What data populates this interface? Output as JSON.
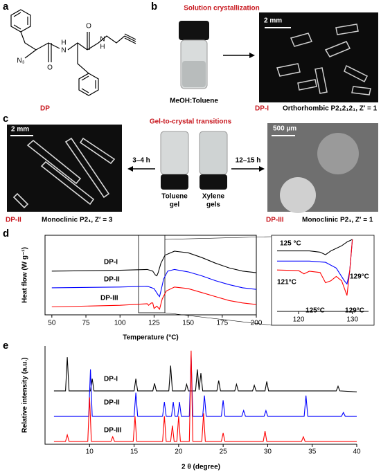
{
  "panels": {
    "a": {
      "label": "a",
      "atoms": [
        "N₃",
        "H",
        "N",
        "O",
        "O",
        "N",
        "H"
      ],
      "compound": "DP"
    },
    "b": {
      "label": "b",
      "title": "Solution crystallization",
      "solvent": "MeOH:Toluene",
      "scale": "2 mm",
      "form": "DP-I",
      "description": "Orthorhombic P2₁2₁2₁, Z′ = 1"
    },
    "c": {
      "label": "c",
      "title": "Gel-to-crystal transitions",
      "scale_left": "2 mm",
      "time_left": "3–4 h",
      "time_right": "12–15 h",
      "scale_right": "500 µm",
      "vials": [
        [
          "Toluene",
          "gel"
        ],
        [
          "Xylene",
          "gels"
        ]
      ],
      "forms": [
        {
          "name": "DP-II",
          "description": "Monoclinic P2₁, Z′ = 3"
        },
        {
          "name": "DP-III",
          "description": "Monoclinic P2₁, Z′ = 1"
        }
      ]
    },
    "d": {
      "label": "d"
    },
    "e": {
      "label": "e"
    }
  },
  "chart_data": [
    {
      "type": "line",
      "xlabel": "Temperature (°C)",
      "ylabel": "Heat flow (W g⁻¹)",
      "xlim": [
        45,
        200
      ],
      "xticks": [
        50,
        75,
        100,
        125,
        150,
        175,
        200
      ],
      "ylim": [
        0,
        10
      ],
      "series": [
        {
          "name": "DP-I",
          "color": "#000000",
          "x": [
            50,
            100,
            120,
            124,
            126,
            127,
            128,
            130,
            133,
            140,
            150,
            160,
            170,
            180,
            190,
            200
          ],
          "values": [
            5.5,
            5.6,
            5.7,
            5.5,
            5.0,
            4.9,
            5.3,
            6.5,
            7.5,
            8.0,
            7.8,
            7.2,
            6.5,
            5.9,
            5.5,
            5.3
          ]
        },
        {
          "name": "DP-II",
          "color": "#0000ff",
          "x": [
            50,
            100,
            120,
            125,
            128,
            129,
            130,
            132,
            135,
            140,
            150,
            160,
            170,
            180,
            190,
            200
          ],
          "values": [
            3.4,
            3.5,
            3.6,
            3.3,
            2.5,
            2.3,
            3.0,
            4.5,
            5.5,
            5.7,
            5.4,
            4.9,
            4.3,
            3.8,
            3.4,
            3.2
          ]
        },
        {
          "name": "DP-III",
          "color": "#ff0000",
          "x": [
            50,
            100,
            120,
            121,
            123,
            124,
            125,
            127,
            129,
            131,
            134,
            140,
            150,
            160,
            170,
            180,
            190,
            200
          ],
          "values": [
            1.0,
            1.2,
            1.4,
            1.2,
            1.5,
            1.5,
            0.8,
            1.1,
            0.7,
            2.0,
            3.0,
            3.5,
            3.3,
            2.8,
            2.3,
            1.8,
            1.5,
            1.3
          ]
        }
      ]
    },
    {
      "type": "line",
      "xlim": [
        116,
        133
      ],
      "xticks": [
        120,
        130
      ],
      "ylim": [
        0,
        10
      ],
      "series": [
        {
          "color": "#000000",
          "x": [
            116,
            122,
            124,
            125,
            126,
            128,
            129,
            130
          ],
          "values": [
            8.2,
            8.2,
            8.0,
            7.6,
            8.2,
            9.0,
            9.6,
            10
          ]
        },
        {
          "color": "#0000ff",
          "x": [
            116,
            122,
            125,
            127,
            128.5,
            129,
            129.5,
            130
          ],
          "values": [
            6.6,
            6.6,
            6.4,
            5.5,
            3.5,
            3.0,
            5,
            10
          ]
        },
        {
          "color": "#ff0000",
          "x": [
            116,
            120,
            121,
            122,
            124,
            125,
            126,
            127,
            128,
            129,
            129.5,
            130
          ],
          "values": [
            5.2,
            5.1,
            4.6,
            5.0,
            4.8,
            3.2,
            3.5,
            4.2,
            3.5,
            1.2,
            5,
            10
          ]
        }
      ],
      "annotations": [
        {
          "text": "125 °C",
          "color": "#000000"
        },
        {
          "text": "129°C",
          "color": "#0000ff"
        },
        {
          "text": "121°C",
          "color": "#ff0000"
        },
        {
          "text": "125°C",
          "color": "#ff0000"
        },
        {
          "text": "129°C",
          "color": "#ff0000"
        }
      ]
    },
    {
      "type": "line",
      "xlabel": "2 θ (degree)",
      "ylabel": "Relative intensity (a.u.)",
      "xlim": [
        5,
        40
      ],
      "xticks": [
        10,
        15,
        20,
        25,
        30,
        35,
        40
      ],
      "ylim": [
        0,
        105
      ],
      "series": [
        {
          "name": "DP-I",
          "color": "#000000",
          "x": [
            6,
            7.3,
            7.5,
            7.7,
            10.1,
            10.3,
            10.5,
            15.0,
            15.2,
            15.4,
            17.1,
            17.3,
            17.5,
            18.9,
            19.1,
            19.3,
            20.7,
            20.9,
            21.1,
            21.9,
            22.1,
            22.3,
            22.5,
            22.7,
            24.3,
            24.5,
            24.7,
            26.3,
            26.5,
            26.7,
            28.3,
            28.5,
            28.7,
            29.7,
            29.9,
            30.1,
            37.7,
            37.9,
            38.1,
            40
          ],
          "values": [
            57,
            57,
            93,
            57,
            57,
            70,
            57,
            57,
            70,
            57,
            57,
            65,
            57,
            57,
            84,
            57,
            57,
            64,
            57,
            57,
            80,
            58,
            76,
            57,
            57,
            68,
            57,
            57,
            64,
            57,
            57,
            63,
            57,
            57,
            67,
            57,
            57,
            62,
            57,
            56
          ]
        },
        {
          "name": "DP-II",
          "color": "#0000ff",
          "x": [
            6,
            9.9,
            10.1,
            10.3,
            15.0,
            15.2,
            15.4,
            18.2,
            18.4,
            18.6,
            19.2,
            19.4,
            19.6,
            19.9,
            20.1,
            20.3,
            21.2,
            21.4,
            21.6,
            22.7,
            22.9,
            23.1,
            24.8,
            25,
            25.2,
            27.1,
            27.3,
            27.5,
            29.6,
            29.8,
            30,
            34.1,
            34.3,
            34.5,
            38.3,
            38.5,
            38.7,
            40
          ],
          "values": [
            30,
            30,
            80,
            30,
            30,
            55,
            30,
            30,
            45,
            30,
            30,
            45,
            30,
            30,
            45,
            30,
            30,
            95,
            30,
            30,
            52,
            30,
            30,
            47,
            30,
            30,
            36,
            30,
            30,
            36,
            30,
            30,
            52,
            30,
            30,
            34,
            30,
            30
          ]
        },
        {
          "name": "DP-III",
          "color": "#ff0000",
          "x": [
            6,
            7.3,
            7.5,
            7.7,
            9.8,
            10,
            10.2,
            12.4,
            12.6,
            12.8,
            14.9,
            15.1,
            15.3,
            18.2,
            18.4,
            18.6,
            19.1,
            19.3,
            19.5,
            19.8,
            20,
            20.2,
            21.2,
            21.4,
            21.6,
            22.6,
            22.8,
            23,
            24.8,
            25,
            25.2,
            29.5,
            29.7,
            29.9,
            33.8,
            34,
            34.2,
            40
          ],
          "values": [
            3,
            3,
            10,
            3,
            3,
            50,
            3,
            3,
            8,
            3,
            3,
            30,
            3,
            3,
            30,
            3,
            3,
            20,
            3,
            3,
            30,
            3,
            3,
            100,
            3,
            3,
            33,
            3,
            3,
            12,
            3,
            3,
            14,
            3,
            3,
            8,
            3,
            3
          ]
        }
      ]
    }
  ]
}
